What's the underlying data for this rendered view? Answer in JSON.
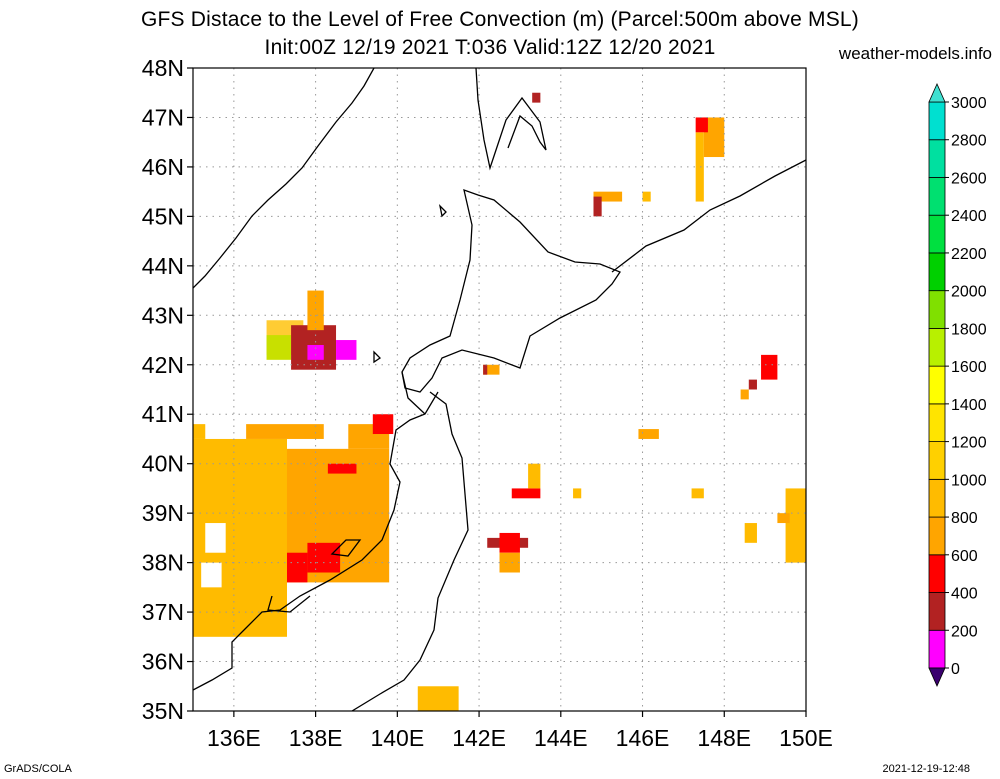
{
  "title_line1": "GFS Distace to the Level of Free Convection (m) (Parcel:500m above MSL)",
  "title_line2": "Init:00Z 12/19 2021 T:036 Valid:12Z 12/20 2021",
  "site": "weather-models.info",
  "footer_left": "GrADS/COLA",
  "footer_right": "2021-12-19-12:48",
  "map": {
    "lon_range": [
      135,
      150
    ],
    "lat_range": [
      35,
      48
    ],
    "lon_ticks": [
      {
        "value": 136,
        "label": "136E"
      },
      {
        "value": 138,
        "label": "138E"
      },
      {
        "value": 140,
        "label": "140E"
      },
      {
        "value": 142,
        "label": "142E"
      },
      {
        "value": 144,
        "label": "144E"
      },
      {
        "value": 146,
        "label": "146E"
      },
      {
        "value": 148,
        "label": "148E"
      },
      {
        "value": 150,
        "label": "150E"
      }
    ],
    "lat_ticks": [
      {
        "value": 35,
        "label": "35N"
      },
      {
        "value": 36,
        "label": "36N"
      },
      {
        "value": 37,
        "label": "37N"
      },
      {
        "value": 38,
        "label": "38N"
      },
      {
        "value": 39,
        "label": "39N"
      },
      {
        "value": 40,
        "label": "40N"
      },
      {
        "value": 41,
        "label": "41N"
      },
      {
        "value": 42,
        "label": "42N"
      },
      {
        "value": 43,
        "label": "43N"
      },
      {
        "value": 44,
        "label": "44N"
      },
      {
        "value": 45,
        "label": "45N"
      },
      {
        "value": 46,
        "label": "46N"
      },
      {
        "value": 47,
        "label": "47N"
      },
      {
        "value": 48,
        "label": "48N"
      }
    ],
    "grid": true
  },
  "colorbar": {
    "levels": [
      {
        "value": 0,
        "label": "0",
        "color": "#ffffff"
      },
      {
        "value": 200,
        "label": "200",
        "color": "#ff00ff"
      },
      {
        "value": 400,
        "label": "400",
        "color": "#b22222"
      },
      {
        "value": 600,
        "label": "600",
        "color": "#ff0000"
      },
      {
        "value": 800,
        "label": "800",
        "color": "#ffa500"
      },
      {
        "value": 1000,
        "label": "1000",
        "color": "#ffbb00"
      },
      {
        "value": 1200,
        "label": "1200",
        "color": "#ffd000"
      },
      {
        "value": 1400,
        "label": "1400",
        "color": "#ffe400"
      },
      {
        "value": 1600,
        "label": "1600",
        "color": "#ffff00"
      },
      {
        "value": 1800,
        "label": "1800",
        "color": "#b8f000"
      },
      {
        "value": 2000,
        "label": "2000",
        "color": "#80e000"
      },
      {
        "value": 2200,
        "label": "2200",
        "color": "#00d000"
      },
      {
        "value": 2400,
        "label": "2400",
        "color": "#00e040"
      },
      {
        "value": 2600,
        "label": "2600",
        "color": "#00e070"
      },
      {
        "value": 2800,
        "label": "2800",
        "color": "#00e0a0"
      },
      {
        "value": 3000,
        "label": "3000",
        "color": "#00e0d0"
      }
    ],
    "below_color": "#3a006e",
    "above_color": "#40e0d0"
  },
  "field_patches": [
    {
      "lon": [
        135,
        137.3
      ],
      "lat": [
        36.5,
        40.5
      ],
      "color": "#ffbb00"
    },
    {
      "lon": [
        135,
        135.3
      ],
      "lat": [
        40.5,
        40.8
      ],
      "color": "#ffbb00"
    },
    {
      "lon": [
        137.3,
        139.8
      ],
      "lat": [
        37.6,
        40.3
      ],
      "color": "#ffa500"
    },
    {
      "lon": [
        136.3,
        138.2
      ],
      "lat": [
        40.5,
        40.8
      ],
      "color": "#ffa500"
    },
    {
      "lon": [
        138.8,
        139.8
      ],
      "lat": [
        40.3,
        40.8
      ],
      "color": "#ffa500"
    },
    {
      "lon": [
        139.4,
        139.9
      ],
      "lat": [
        40.6,
        41.0
      ],
      "color": "#ff0000"
    },
    {
      "lon": [
        137.3,
        137.8
      ],
      "lat": [
        37.6,
        38.2
      ],
      "color": "#ff0000"
    },
    {
      "lon": [
        137.8,
        138.6
      ],
      "lat": [
        37.8,
        38.4
      ],
      "color": "#ff0000"
    },
    {
      "lon": [
        138.3,
        139.0
      ],
      "lat": [
        39.8,
        40.0
      ],
      "color": "#ff0000"
    },
    {
      "lon": [
        135.3,
        135.8
      ],
      "lat": [
        38.2,
        38.8
      ],
      "color": "#ffffff"
    },
    {
      "lon": [
        135.2,
        135.7
      ],
      "lat": [
        37.5,
        38.0
      ],
      "color": "#ffffff"
    },
    {
      "lon": [
        136.8,
        137.7
      ],
      "lat": [
        42.2,
        42.9
      ],
      "color": "#ffcc33"
    },
    {
      "lon": [
        136.8,
        137.4
      ],
      "lat": [
        42.1,
        42.6
      ],
      "color": "#c8e000"
    },
    {
      "lon": [
        137.4,
        138.5
      ],
      "lat": [
        41.9,
        42.8
      ],
      "color": "#b22222"
    },
    {
      "lon": [
        137.8,
        138.2
      ],
      "lat": [
        42.7,
        43.5
      ],
      "color": "#ffa500"
    },
    {
      "lon": [
        138.5,
        139.0
      ],
      "lat": [
        42.1,
        42.5
      ],
      "color": "#ff00ff"
    },
    {
      "lon": [
        137.8,
        138.2
      ],
      "lat": [
        42.1,
        42.4
      ],
      "color": "#ff00ff"
    },
    {
      "lon": [
        142.1,
        142.5
      ],
      "lat": [
        41.8,
        42.0
      ],
      "color": "#ffa500"
    },
    {
      "lon": [
        142.1,
        142.2
      ],
      "lat": [
        41.8,
        42.0
      ],
      "color": "#b22222"
    },
    {
      "lon": [
        140.5,
        141.5
      ],
      "lat": [
        35.0,
        35.5
      ],
      "color": "#ffbb00"
    },
    {
      "lon": [
        142.2,
        143.2
      ],
      "lat": [
        38.3,
        38.5
      ],
      "color": "#b22222"
    },
    {
      "lon": [
        142.5,
        143.0
      ],
      "lat": [
        38.2,
        38.6
      ],
      "color": "#ff0000"
    },
    {
      "lon": [
        142.5,
        143.0
      ],
      "lat": [
        37.8,
        38.2
      ],
      "color": "#ffa500"
    },
    {
      "lon": [
        142.8,
        143.5
      ],
      "lat": [
        39.3,
        39.5
      ],
      "color": "#ff0000"
    },
    {
      "lon": [
        143.2,
        143.5
      ],
      "lat": [
        39.5,
        40.0
      ],
      "color": "#ffbb00"
    },
    {
      "lon": [
        144.3,
        144.5
      ],
      "lat": [
        39.3,
        39.5
      ],
      "color": "#ffbb00"
    },
    {
      "lon": [
        145.9,
        146.4
      ],
      "lat": [
        40.5,
        40.7
      ],
      "color": "#ffa500"
    },
    {
      "lon": [
        147.2,
        147.5
      ],
      "lat": [
        39.3,
        39.5
      ],
      "color": "#ffbb00"
    },
    {
      "lon": [
        148.5,
        148.8
      ],
      "lat": [
        38.4,
        38.8
      ],
      "color": "#ffbb00"
    },
    {
      "lon": [
        149.5,
        150.0
      ],
      "lat": [
        38.0,
        39.5
      ],
      "color": "#ffbb00"
    },
    {
      "lon": [
        149.3,
        149.6
      ],
      "lat": [
        38.8,
        39.0
      ],
      "color": "#ffa500"
    },
    {
      "lon": [
        148.4,
        148.6
      ],
      "lat": [
        41.3,
        41.5
      ],
      "color": "#ffa500"
    },
    {
      "lon": [
        148.6,
        148.8
      ],
      "lat": [
        41.5,
        41.7
      ],
      "color": "#b22222"
    },
    {
      "lon": [
        148.9,
        149.3
      ],
      "lat": [
        41.7,
        42.2
      ],
      "color": "#ff0000"
    },
    {
      "lon": [
        144.8,
        145.5
      ],
      "lat": [
        45.3,
        45.5
      ],
      "color": "#ffa500"
    },
    {
      "lon": [
        144.8,
        145.0
      ],
      "lat": [
        45.0,
        45.4
      ],
      "color": "#b22222"
    },
    {
      "lon": [
        146.0,
        146.2
      ],
      "lat": [
        45.3,
        45.5
      ],
      "color": "#ffbb00"
    },
    {
      "lon": [
        147.3,
        147.5
      ],
      "lat": [
        45.3,
        46.7
      ],
      "color": "#ffbb00"
    },
    {
      "lon": [
        147.5,
        148.0
      ],
      "lat": [
        46.2,
        47.0
      ],
      "color": "#ffa500"
    },
    {
      "lon": [
        147.3,
        147.6
      ],
      "lat": [
        46.7,
        47.0
      ],
      "color": "#ff0000"
    },
    {
      "lon": [
        143.3,
        143.5
      ],
      "lat": [
        47.3,
        47.5
      ],
      "color": "#b22222"
    }
  ]
}
